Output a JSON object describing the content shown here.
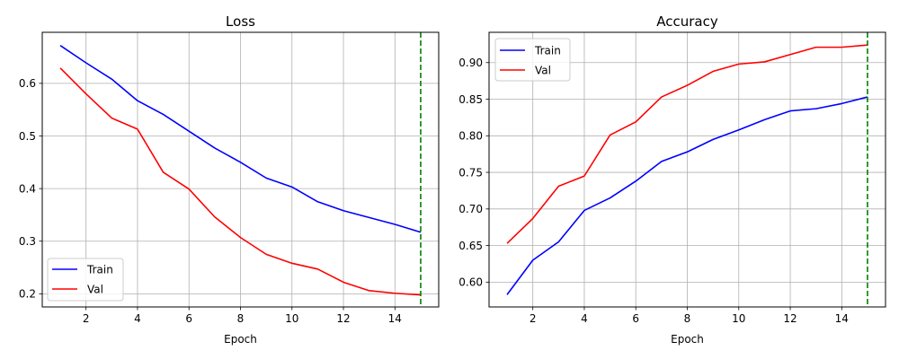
{
  "colors": {
    "train": "#0000ff",
    "val": "#ff0000",
    "marker": "#008000",
    "grid": "#b0b0b0",
    "axes": "#000000"
  },
  "chart_data": [
    {
      "type": "line",
      "title": "Loss",
      "xlabel": "Epoch",
      "ylabel": "",
      "xlim": [
        0.3,
        15.7
      ],
      "ylim": [
        0.175,
        0.697
      ],
      "xticks": [
        2,
        4,
        6,
        8,
        10,
        12,
        14
      ],
      "yticks": [
        0.2,
        0.3,
        0.4,
        0.5,
        0.6
      ],
      "yticklabels": [
        "0.2",
        "0.3",
        "0.4",
        "0.5",
        "0.6"
      ],
      "grid": true,
      "legend": "lower-left",
      "x": [
        1,
        2,
        3,
        4,
        5,
        6,
        7,
        8,
        9,
        10,
        11,
        12,
        13,
        14,
        15
      ],
      "series": [
        {
          "name": "Train",
          "color": "train",
          "values": [
            0.672,
            0.639,
            0.608,
            0.567,
            0.541,
            0.509,
            0.477,
            0.45,
            0.42,
            0.403,
            0.375,
            0.358,
            0.345,
            0.332,
            0.317
          ]
        },
        {
          "name": "Val",
          "color": "val",
          "values": [
            0.629,
            0.58,
            0.534,
            0.513,
            0.431,
            0.399,
            0.346,
            0.307,
            0.275,
            0.258,
            0.247,
            0.222,
            0.206,
            0.201,
            0.198
          ]
        }
      ],
      "vline": 15
    },
    {
      "type": "line",
      "title": "Accuracy",
      "xlabel": "Epoch",
      "ylabel": "",
      "xlim": [
        0.3,
        15.7
      ],
      "ylim": [
        0.5661,
        0.9414
      ],
      "xticks": [
        2,
        4,
        6,
        8,
        10,
        12,
        14
      ],
      "yticks": [
        0.6,
        0.65,
        0.7,
        0.75,
        0.8,
        0.85,
        0.9
      ],
      "yticklabels": [
        "0.60",
        "0.65",
        "0.70",
        "0.75",
        "0.80",
        "0.85",
        "0.90"
      ],
      "grid": true,
      "legend": "upper-left",
      "x": [
        1,
        2,
        3,
        4,
        5,
        6,
        7,
        8,
        9,
        10,
        11,
        12,
        13,
        14,
        15
      ],
      "series": [
        {
          "name": "Train",
          "color": "train",
          "values": [
            0.583,
            0.63,
            0.655,
            0.698,
            0.715,
            0.738,
            0.765,
            0.778,
            0.795,
            0.808,
            0.822,
            0.834,
            0.837,
            0.844,
            0.853
          ]
        },
        {
          "name": "Val",
          "color": "val",
          "values": [
            0.653,
            0.687,
            0.731,
            0.745,
            0.801,
            0.819,
            0.853,
            0.869,
            0.888,
            0.898,
            0.901,
            0.911,
            0.921,
            0.921,
            0.924
          ]
        }
      ],
      "vline": 15
    }
  ]
}
